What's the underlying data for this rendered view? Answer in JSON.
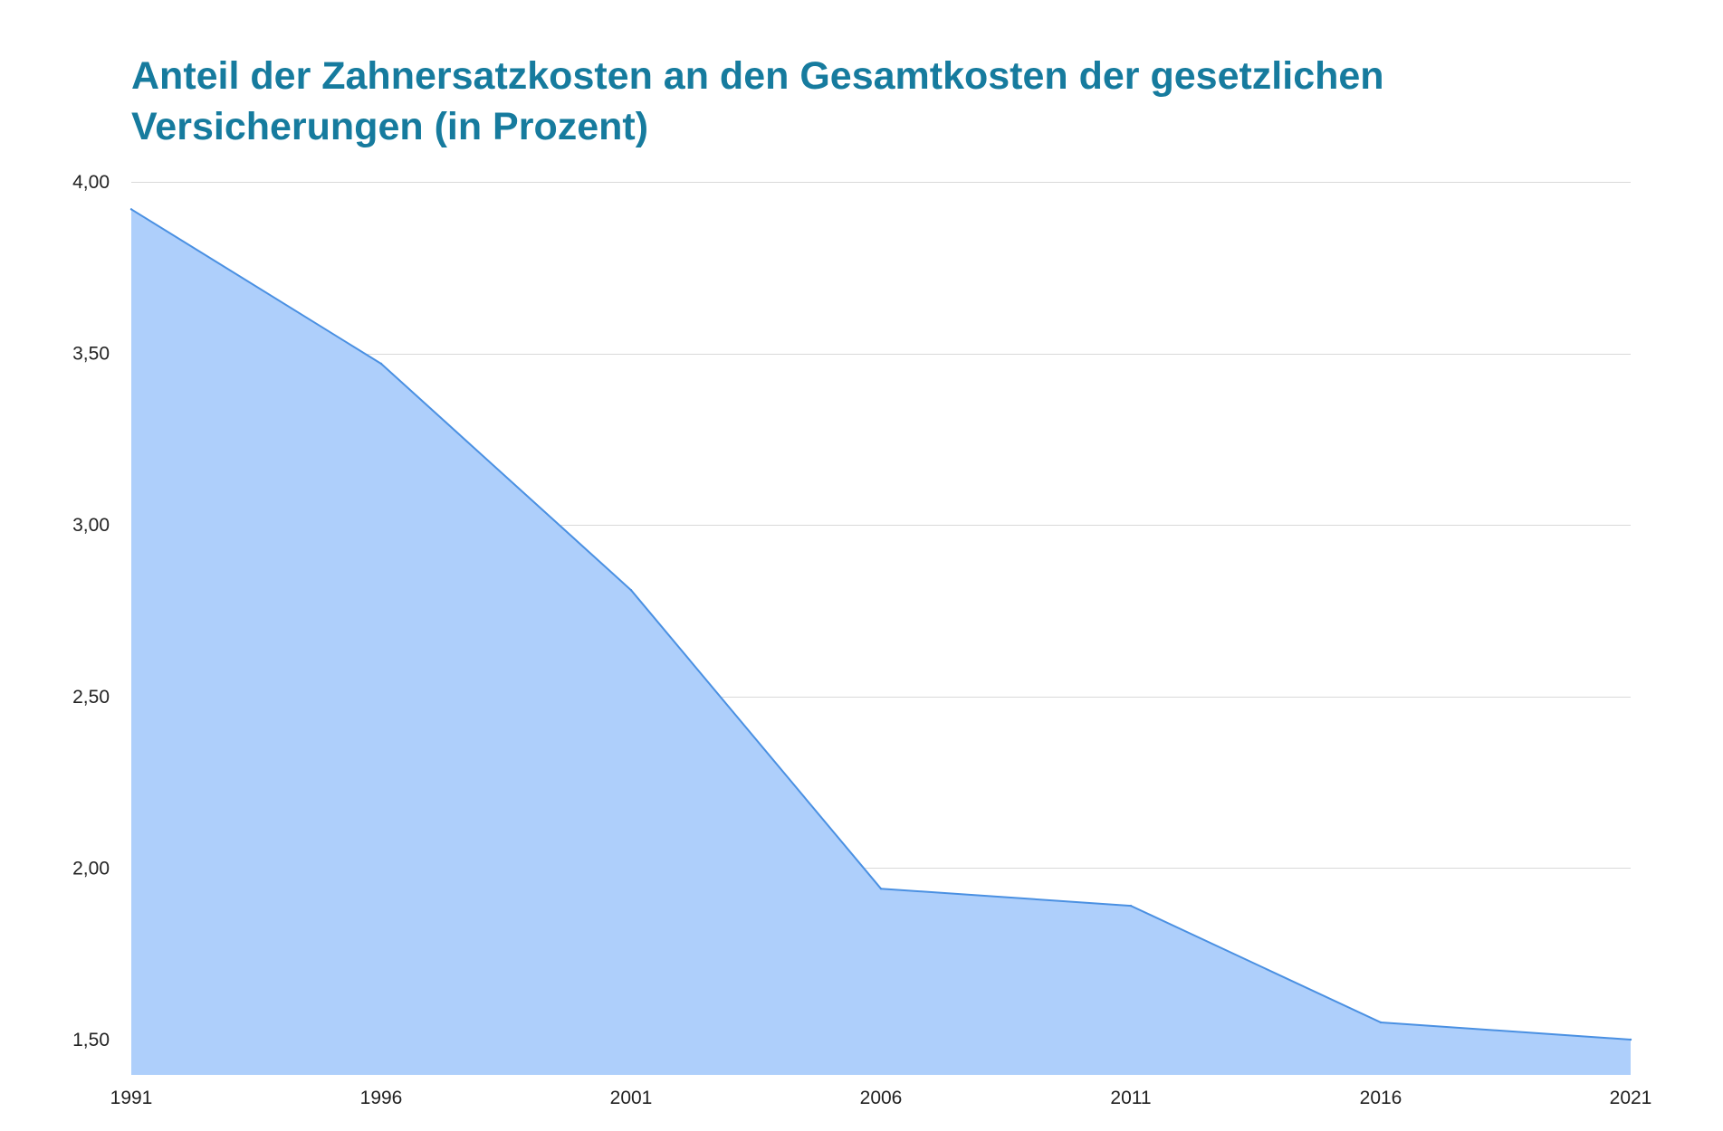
{
  "chart_data": {
    "type": "area",
    "title": "Anteil der Zahnersatzkosten an den Gesamtkosten der gesetzlichen Versicherungen (in Prozent)",
    "xlabel": "",
    "ylabel": "",
    "x": [
      "1991",
      "1996",
      "2001",
      "2006",
      "2011",
      "2016",
      "2021"
    ],
    "series": [
      {
        "values": [
          3.92,
          3.47,
          2.81,
          1.94,
          1.89,
          1.55,
          1.5
        ]
      }
    ],
    "ylim": [
      1.4,
      4.0
    ],
    "yticks": [
      "4,00",
      "3,50",
      "3,00",
      "2,50",
      "2,00",
      "1,50"
    ],
    "ytick_values": [
      4.0,
      3.5,
      3.0,
      2.5,
      2.0,
      1.5
    ],
    "grid": true,
    "legend": "none",
    "colors": {
      "title": "#167b9e",
      "fill": "#aecffb",
      "line": "#4a90e2",
      "grid": "#d9d9d9",
      "text": "#222222"
    }
  }
}
